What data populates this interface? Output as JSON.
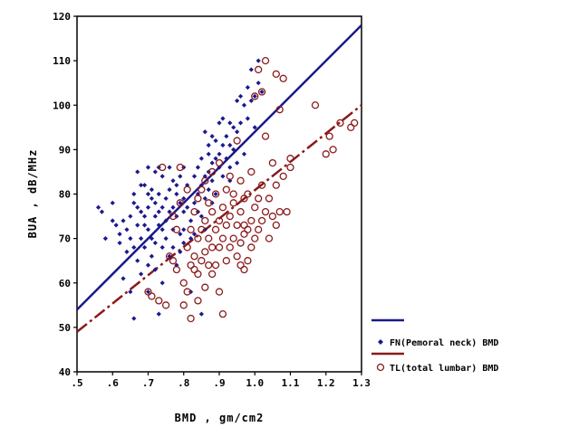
{
  "chart_data": {
    "type": "scatter",
    "title": "",
    "xlabel": "BMD , gm/cm2",
    "ylabel": "BUA , dB/MHz",
    "xlim": [
      0.5,
      1.3
    ],
    "ylim": [
      40,
      120
    ],
    "x_ticks": [
      0.5,
      0.6,
      0.7,
      0.8,
      0.9,
      1.0,
      1.1,
      1.2,
      1.3
    ],
    "x_tick_labels": [
      ".5",
      ".6",
      ".7",
      ".8",
      ".9",
      "1.0",
      "1.1",
      "1.2",
      "1.3"
    ],
    "y_ticks": [
      40,
      50,
      60,
      70,
      80,
      90,
      100,
      110,
      120
    ],
    "y_tick_labels": [
      "40",
      "50",
      "60",
      "70",
      "80",
      "90",
      "100",
      "110",
      "120"
    ],
    "grid": false,
    "legend_position": "bottom-right",
    "fit_lines": [
      {
        "name": "FN(Pemoral neck) BMD",
        "style": "solid",
        "color": "#1a1a8c",
        "x": [
          0.5,
          1.3
        ],
        "y": [
          54,
          118
        ]
      },
      {
        "name": "TL(total lumbar) BMD",
        "style": "dash-dot",
        "color": "#8b1a1a",
        "x": [
          0.5,
          1.3
        ],
        "y": [
          49,
          100
        ]
      }
    ],
    "series": [
      {
        "name": "FN(Pemoral neck) BMD",
        "marker": "diamond",
        "color": "#1a1a8c",
        "points": [
          [
            0.56,
            77
          ],
          [
            0.57,
            76
          ],
          [
            0.58,
            70
          ],
          [
            0.6,
            78
          ],
          [
            0.6,
            74
          ],
          [
            0.61,
            73
          ],
          [
            0.62,
            71
          ],
          [
            0.62,
            69
          ],
          [
            0.63,
            74
          ],
          [
            0.63,
            61
          ],
          [
            0.64,
            72
          ],
          [
            0.64,
            67
          ],
          [
            0.65,
            75
          ],
          [
            0.65,
            70
          ],
          [
            0.65,
            58
          ],
          [
            0.66,
            80
          ],
          [
            0.66,
            78
          ],
          [
            0.66,
            68
          ],
          [
            0.66,
            52
          ],
          [
            0.67,
            85
          ],
          [
            0.67,
            77
          ],
          [
            0.67,
            73
          ],
          [
            0.67,
            65
          ],
          [
            0.68,
            76
          ],
          [
            0.68,
            70
          ],
          [
            0.68,
            62
          ],
          [
            0.69,
            82
          ],
          [
            0.69,
            75
          ],
          [
            0.69,
            73
          ],
          [
            0.69,
            68
          ],
          [
            0.7,
            86
          ],
          [
            0.7,
            80
          ],
          [
            0.7,
            77
          ],
          [
            0.7,
            72
          ],
          [
            0.7,
            64
          ],
          [
            0.7,
            58
          ],
          [
            0.71,
            81
          ],
          [
            0.71,
            79
          ],
          [
            0.71,
            70
          ],
          [
            0.71,
            66
          ],
          [
            0.72,
            85
          ],
          [
            0.72,
            78
          ],
          [
            0.72,
            75
          ],
          [
            0.72,
            69
          ],
          [
            0.72,
            63
          ],
          [
            0.73,
            86
          ],
          [
            0.73,
            80
          ],
          [
            0.73,
            76
          ],
          [
            0.73,
            73
          ],
          [
            0.73,
            53
          ],
          [
            0.74,
            84
          ],
          [
            0.74,
            77
          ],
          [
            0.74,
            72
          ],
          [
            0.74,
            68
          ],
          [
            0.74,
            60
          ],
          [
            0.75,
            79
          ],
          [
            0.75,
            74
          ],
          [
            0.75,
            70
          ],
          [
            0.76,
            86
          ],
          [
            0.76,
            81
          ],
          [
            0.76,
            76
          ],
          [
            0.76,
            66
          ],
          [
            0.77,
            83
          ],
          [
            0.77,
            77
          ],
          [
            0.77,
            72
          ],
          [
            0.77,
            68
          ],
          [
            0.78,
            80
          ],
          [
            0.78,
            75
          ],
          [
            0.78,
            64
          ],
          [
            0.79,
            84
          ],
          [
            0.79,
            78
          ],
          [
            0.79,
            71
          ],
          [
            0.79,
            67
          ],
          [
            0.8,
            86
          ],
          [
            0.8,
            79
          ],
          [
            0.8,
            76
          ],
          [
            0.8,
            72
          ],
          [
            0.8,
            69
          ],
          [
            0.81,
            82
          ],
          [
            0.81,
            77
          ],
          [
            0.82,
            74
          ],
          [
            0.82,
            70
          ],
          [
            0.82,
            58
          ],
          [
            0.83,
            84
          ],
          [
            0.83,
            78
          ],
          [
            0.83,
            71
          ],
          [
            0.84,
            86
          ],
          [
            0.84,
            80
          ],
          [
            0.84,
            76
          ],
          [
            0.85,
            88
          ],
          [
            0.85,
            82
          ],
          [
            0.85,
            75
          ],
          [
            0.85,
            53
          ],
          [
            0.86,
            94
          ],
          [
            0.86,
            84
          ],
          [
            0.86,
            79
          ],
          [
            0.86,
            72
          ],
          [
            0.87,
            91
          ],
          [
            0.87,
            89
          ],
          [
            0.87,
            85
          ],
          [
            0.87,
            81
          ],
          [
            0.88,
            93
          ],
          [
            0.88,
            87
          ],
          [
            0.88,
            83
          ],
          [
            0.89,
            92
          ],
          [
            0.89,
            88
          ],
          [
            0.89,
            80
          ],
          [
            0.9,
            96
          ],
          [
            0.9,
            89
          ],
          [
            0.9,
            86
          ],
          [
            0.91,
            97
          ],
          [
            0.91,
            91
          ],
          [
            0.91,
            84
          ],
          [
            0.92,
            93
          ],
          [
            0.92,
            88
          ],
          [
            0.93,
            96
          ],
          [
            0.93,
            91
          ],
          [
            0.93,
            86
          ],
          [
            0.94,
            95
          ],
          [
            0.94,
            90
          ],
          [
            0.95,
            101
          ],
          [
            0.95,
            94
          ],
          [
            0.95,
            87
          ],
          [
            0.96,
            102
          ],
          [
            0.96,
            96
          ],
          [
            0.97,
            100
          ],
          [
            0.98,
            104
          ],
          [
            0.98,
            97
          ],
          [
            0.99,
            108
          ],
          [
            0.99,
            101
          ],
          [
            1.0,
            102
          ],
          [
            1.0,
            95
          ],
          [
            1.01,
            110
          ],
          [
            1.01,
            105
          ],
          [
            1.02,
            103
          ],
          [
            0.97,
            89
          ],
          [
            0.93,
            83
          ],
          [
            0.88,
            78
          ],
          [
            0.78,
            82
          ],
          [
            0.68,
            82
          ]
        ]
      },
      {
        "name": "TL(total lumbar) BMD",
        "marker": "circle",
        "color": "#8b1a1a",
        "points": [
          [
            0.7,
            58
          ],
          [
            0.71,
            57
          ],
          [
            0.73,
            56
          ],
          [
            0.74,
            86
          ],
          [
            0.75,
            55
          ],
          [
            0.76,
            66
          ],
          [
            0.77,
            65
          ],
          [
            0.77,
            75
          ],
          [
            0.78,
            63
          ],
          [
            0.78,
            72
          ],
          [
            0.79,
            86
          ],
          [
            0.79,
            78
          ],
          [
            0.8,
            55
          ],
          [
            0.8,
            60
          ],
          [
            0.81,
            58
          ],
          [
            0.81,
            68
          ],
          [
            0.81,
            81
          ],
          [
            0.82,
            52
          ],
          [
            0.82,
            64
          ],
          [
            0.82,
            72
          ],
          [
            0.83,
            66
          ],
          [
            0.83,
            63
          ],
          [
            0.83,
            76
          ],
          [
            0.84,
            62
          ],
          [
            0.84,
            70
          ],
          [
            0.84,
            79
          ],
          [
            0.85,
            65
          ],
          [
            0.85,
            72
          ],
          [
            0.85,
            81
          ],
          [
            0.86,
            59
          ],
          [
            0.86,
            67
          ],
          [
            0.86,
            74
          ],
          [
            0.86,
            83
          ],
          [
            0.87,
            64
          ],
          [
            0.87,
            70
          ],
          [
            0.87,
            78
          ],
          [
            0.88,
            62
          ],
          [
            0.88,
            68
          ],
          [
            0.88,
            76
          ],
          [
            0.88,
            85
          ],
          [
            0.89,
            64
          ],
          [
            0.89,
            72
          ],
          [
            0.89,
            80
          ],
          [
            0.9,
            68
          ],
          [
            0.9,
            74
          ],
          [
            0.9,
            87
          ],
          [
            0.91,
            53
          ],
          [
            0.91,
            70
          ],
          [
            0.91,
            77
          ],
          [
            0.92,
            65
          ],
          [
            0.92,
            73
          ],
          [
            0.92,
            81
          ],
          [
            0.93,
            68
          ],
          [
            0.93,
            75
          ],
          [
            0.93,
            84
          ],
          [
            0.94,
            70
          ],
          [
            0.94,
            78
          ],
          [
            0.95,
            66
          ],
          [
            0.95,
            73
          ],
          [
            0.95,
            92
          ],
          [
            0.96,
            69
          ],
          [
            0.96,
            76
          ],
          [
            0.96,
            83
          ],
          [
            0.97,
            63
          ],
          [
            0.97,
            71
          ],
          [
            0.97,
            79
          ],
          [
            0.98,
            65
          ],
          [
            0.98,
            72
          ],
          [
            0.98,
            80
          ],
          [
            0.99,
            68
          ],
          [
            0.99,
            74
          ],
          [
            0.99,
            85
          ],
          [
            1.0,
            70
          ],
          [
            1.0,
            77
          ],
          [
            1.0,
            102
          ],
          [
            1.01,
            72
          ],
          [
            1.01,
            79
          ],
          [
            1.01,
            108
          ],
          [
            1.02,
            74
          ],
          [
            1.02,
            82
          ],
          [
            1.02,
            103
          ],
          [
            1.03,
            76
          ],
          [
            1.03,
            93
          ],
          [
            1.03,
            110
          ],
          [
            1.04,
            70
          ],
          [
            1.04,
            79
          ],
          [
            1.05,
            75
          ],
          [
            1.05,
            87
          ],
          [
            1.06,
            73
          ],
          [
            1.06,
            82
          ],
          [
            1.06,
            107
          ],
          [
            1.07,
            76
          ],
          [
            1.07,
            99
          ],
          [
            1.08,
            84
          ],
          [
            1.08,
            106
          ],
          [
            1.09,
            76
          ],
          [
            1.1,
            86
          ],
          [
            1.1,
            88
          ],
          [
            1.17,
            100
          ],
          [
            1.2,
            89
          ],
          [
            1.21,
            93
          ],
          [
            1.22,
            90
          ],
          [
            1.24,
            96
          ],
          [
            1.27,
            95
          ],
          [
            1.28,
            96
          ],
          [
            0.94,
            80
          ],
          [
            0.96,
            64
          ],
          [
            0.97,
            73
          ],
          [
            0.9,
            58
          ],
          [
            0.84,
            56
          ]
        ]
      }
    ]
  }
}
